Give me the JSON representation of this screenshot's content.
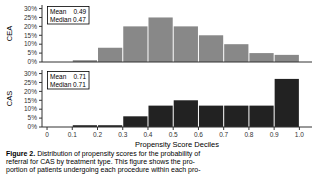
{
  "chart_data": [
    {
      "type": "histogram",
      "ylabel": "CEA",
      "bins": [
        0.0,
        0.1,
        0.2,
        0.3,
        0.4,
        0.5,
        0.6,
        0.7,
        0.8,
        0.9,
        1.0
      ],
      "values": [
        0,
        1,
        8,
        20,
        25,
        20,
        15,
        10,
        5,
        4
      ],
      "color": "#888888",
      "xlim": [
        -0.02,
        1.05
      ],
      "ylim": [
        0,
        32
      ],
      "yticks": [
        {
          "value": 0,
          "label": "0%"
        },
        {
          "value": 5,
          "label": "5%"
        },
        {
          "value": 10,
          "label": "10%"
        },
        {
          "value": 15,
          "label": "15%"
        },
        {
          "value": 20,
          "label": "20%"
        },
        {
          "value": 25,
          "label": "25%"
        },
        {
          "value": 30,
          "label": "30%"
        }
      ],
      "tick_labels": "y",
      "annotations": [
        "Mean    0.49\nMedian 0.47"
      ]
    },
    {
      "type": "histogram",
      "ylabel": "CAS",
      "xlabel": "Propensity Score Deciles",
      "bins": [
        0.0,
        0.1,
        0.2,
        0.3,
        0.4,
        0.5,
        0.6,
        0.7,
        0.8,
        0.9,
        1.0
      ],
      "values": [
        0,
        1,
        1,
        6,
        12,
        15,
        12,
        12,
        12,
        27
      ],
      "color": "#222222",
      "xlim": [
        -0.02,
        1.05
      ],
      "ylim": [
        0,
        32
      ],
      "xticks": [
        0,
        0.1,
        0.2,
        0.3,
        0.4,
        0.5,
        0.6,
        0.7,
        0.8,
        0.9,
        {
          "value": 1.0,
          "label": "1.0"
        }
      ],
      "yticks": [
        {
          "value": 0,
          "label": "0%"
        },
        {
          "value": 5,
          "label": "5%"
        },
        {
          "value": 10,
          "label": "10%"
        },
        {
          "value": 15,
          "label": "15%"
        },
        {
          "value": 20,
          "label": "20%"
        },
        {
          "value": 25,
          "label": "25%"
        },
        {
          "value": 30,
          "label": "30%"
        }
      ],
      "annotations": [
        "Mean    0.71\nMedian 0.71"
      ]
    }
  ],
  "caption": {
    "label": "Figure 2.",
    "text": " Distribution of propensity scores for the probability of\nreferral for CAS by treatment type. This figure shows the pro-\nportion of patients undergoing each procedure within each pro-"
  }
}
